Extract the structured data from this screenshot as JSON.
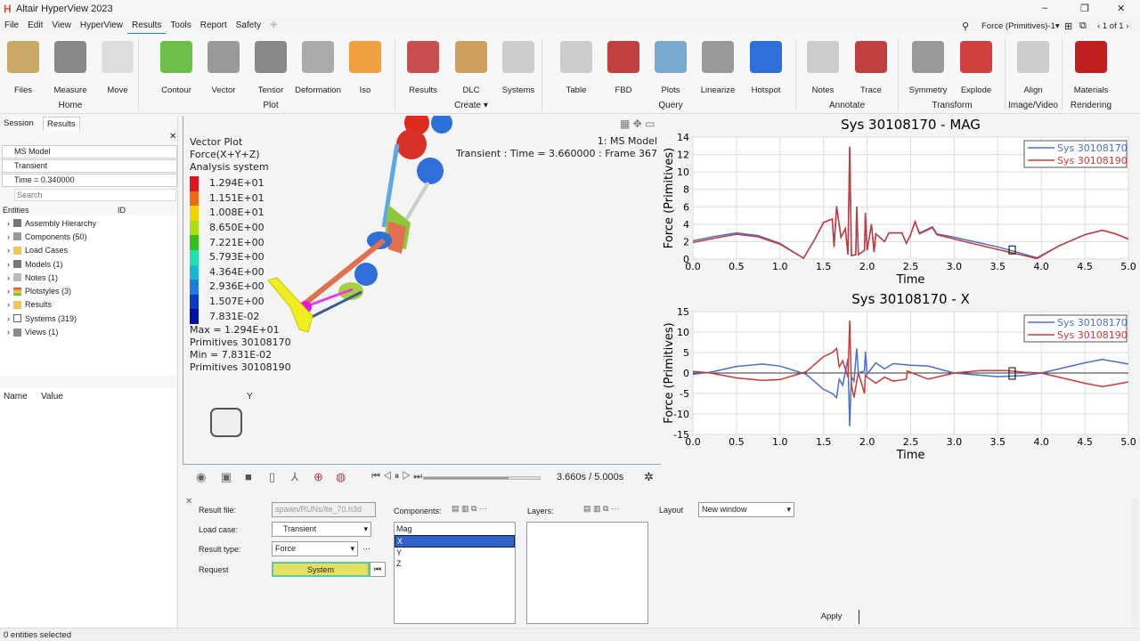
{
  "app": {
    "title": "Altair HyperView 2023",
    "logo": "H"
  },
  "window": {
    "minimize": "–",
    "maximize": "❐",
    "close": "✕"
  },
  "menu": [
    "File",
    "Edit",
    "View",
    "HyperView",
    "Results",
    "Tools",
    "Report",
    "Safety"
  ],
  "menu_active": "Results",
  "top_right": {
    "plot_name": "Force (Primitives)-1",
    "page": "1 of 1"
  },
  "ribbon": {
    "buttons": [
      {
        "label": "Files",
        "color": "#c9a865"
      },
      {
        "label": "Measure",
        "color": "#888"
      },
      {
        "label": "Move",
        "color": "#ddd"
      },
      {
        "label": "Contour",
        "color": "#6cc04a"
      },
      {
        "label": "Vector",
        "color": "#999"
      },
      {
        "label": "Tensor",
        "color": "#888"
      },
      {
        "label": "Deformation",
        "color": "#aaa"
      },
      {
        "label": "Iso",
        "color": "#f0a040"
      },
      {
        "label": "Results",
        "color": "#c85050"
      },
      {
        "label": "DLC",
        "color": "#d0a060"
      },
      {
        "label": "Systems",
        "color": "#ccc"
      },
      {
        "label": "Table",
        "color": "#ccc"
      },
      {
        "label": "FBD",
        "color": "#c04040"
      },
      {
        "label": "Plots",
        "color": "#7ac"
      },
      {
        "label": "Linearize",
        "color": "#999"
      },
      {
        "label": "Hotspot",
        "color": "#2e6fd9"
      },
      {
        "label": "Notes",
        "color": "#ccc"
      },
      {
        "label": "Trace",
        "color": "#c04040"
      },
      {
        "label": "Symmetry",
        "color": "#999"
      },
      {
        "label": "Explode",
        "color": "#d04040"
      },
      {
        "label": "Align",
        "color": "#ccc"
      },
      {
        "label": "Materials",
        "color": "#c02020"
      }
    ],
    "groups": [
      "Home",
      "Plot",
      "Create ▾",
      "Query",
      "Annotate",
      "Transform",
      "Image/Video",
      "Rendering"
    ]
  },
  "left_panel": {
    "tabs": [
      "Session",
      "Results"
    ],
    "selectors": [
      "MS Model",
      "Transient",
      "Time = 0.340000"
    ],
    "search_placeholder": "Search",
    "entities_header": "Entities",
    "id_col": "ID",
    "tree": [
      "Assembly Hierarchy",
      "Components (50)",
      "Load Cases",
      "Models (1)",
      "Notes (1)",
      "Plotstyles (3)",
      "Results",
      "Systems (319)",
      "Views (1)"
    ],
    "props_headers": [
      "Name",
      "Value"
    ]
  },
  "viewport": {
    "legend_title": [
      "Vector Plot",
      "Force(X+Y+Z)",
      "Analysis system"
    ],
    "legend_values": [
      "1.294E+01",
      "1.151E+01",
      "1.008E+01",
      "8.650E+00",
      "7.221E+00",
      "5.793E+00",
      "4.364E+00",
      "2.936E+00",
      "1.507E+00",
      "7.831E-02"
    ],
    "legend_colors": [
      "#e0141e",
      "#f26a10",
      "#f5d10a",
      "#a8e010",
      "#30c020",
      "#20e0b0",
      "#18b8d0",
      "#1e7be0",
      "#0a3cc8",
      "#0010a0"
    ],
    "max_label": "Max =  1.294E+01",
    "max_entity": "Primitives 30108170",
    "min_label": "Min =  7.831E-02",
    "min_entity": "Primitives 30108190",
    "model_label": "1: MS Model",
    "time_label": "Transient : Time = 3.660000 : Frame 367",
    "axis_y": "Y"
  },
  "animation": {
    "time": "3.660s / 5.000s",
    "progress": 0.732
  },
  "bottom_panel": {
    "result_file_label": "Result file:",
    "result_file": "spawn/RUNs/lte_70.h3d",
    "load_case_label": "Load case:",
    "load_case": "Transient",
    "result_type_label": "Result type:",
    "result_type": "Force",
    "request_label": "Request",
    "request": "System",
    "components_label": "Components:",
    "components": [
      "Mag",
      "X",
      "Y",
      "Z"
    ],
    "selected_component": "X",
    "layers_label": "Layers:",
    "layout_label": "Layout",
    "layout": "New window",
    "apply": "Apply"
  },
  "status": "0 entities selected",
  "chart_data": [
    {
      "type": "line",
      "title": "Sys 30108170 - MAG",
      "xlabel": "Time",
      "ylabel": "Force (Primitives)",
      "xlim": [
        0,
        5
      ],
      "ylim": [
        0,
        14
      ],
      "xticks": [
        "0.0",
        "0.5",
        "1.0",
        "1.5",
        "2.0",
        "2.5",
        "3.0",
        "3.5",
        "4.0",
        "4.5",
        "5.0"
      ],
      "yticks": [
        "0",
        "2",
        "4",
        "6",
        "8",
        "10",
        "12",
        "14"
      ],
      "grid": true,
      "legend": "top-right",
      "series": [
        {
          "name": "Sys 30108170",
          "color": "#4a6fc8",
          "points": [
            [
              0,
              2.1
            ],
            [
              0.25,
              2.6
            ],
            [
              0.5,
              3.0
            ],
            [
              0.75,
              2.7
            ],
            [
              1.0,
              1.8
            ],
            [
              1.27,
              0.1
            ],
            [
              1.4,
              2.3
            ],
            [
              1.5,
              4.2
            ],
            [
              1.6,
              4.6
            ],
            [
              1.62,
              1.4
            ],
            [
              1.65,
              6.1
            ],
            [
              1.7,
              2.5
            ],
            [
              1.75,
              3.5
            ],
            [
              1.78,
              0.5
            ],
            [
              1.8,
              12.9
            ],
            [
              1.82,
              0.4
            ],
            [
              1.87,
              0.5
            ],
            [
              1.88,
              6.0
            ],
            [
              1.9,
              0.5
            ],
            [
              1.97,
              1.0
            ],
            [
              1.98,
              5.3
            ],
            [
              2.0,
              1.0
            ],
            [
              2.05,
              4.0
            ],
            [
              2.08,
              0.8
            ],
            [
              2.1,
              2.9
            ],
            [
              2.2,
              2.0
            ],
            [
              2.25,
              3.0
            ],
            [
              2.4,
              3.0
            ],
            [
              2.45,
              1.8
            ],
            [
              2.5,
              2.8
            ],
            [
              2.55,
              4.3
            ],
            [
              2.6,
              3.0
            ],
            [
              2.75,
              3.7
            ],
            [
              2.8,
              2.9
            ],
            [
              3.0,
              2.5
            ],
            [
              3.5,
              1.4
            ],
            [
              3.95,
              0.15
            ],
            [
              4.2,
              1.5
            ],
            [
              4.5,
              2.8
            ],
            [
              4.7,
              3.3
            ],
            [
              4.85,
              2.9
            ],
            [
              5.0,
              2.3
            ]
          ]
        },
        {
          "name": "Sys 30108190",
          "color": "#c83a3a",
          "points": [
            [
              0,
              1.9
            ],
            [
              0.25,
              2.4
            ],
            [
              0.5,
              2.85
            ],
            [
              0.75,
              2.55
            ],
            [
              1.0,
              1.7
            ],
            [
              1.27,
              0.1
            ],
            [
              1.4,
              2.3
            ],
            [
              1.5,
              4.2
            ],
            [
              1.6,
              4.6
            ],
            [
              1.62,
              1.4
            ],
            [
              1.65,
              6.0
            ],
            [
              1.7,
              2.5
            ],
            [
              1.75,
              3.5
            ],
            [
              1.78,
              0.5
            ],
            [
              1.8,
              12.9
            ],
            [
              1.82,
              0.4
            ],
            [
              1.87,
              0.5
            ],
            [
              1.88,
              6.0
            ],
            [
              1.9,
              0.5
            ],
            [
              1.97,
              1.0
            ],
            [
              1.98,
              5.3
            ],
            [
              2.0,
              1.0
            ],
            [
              2.05,
              4.0
            ],
            [
              2.08,
              0.8
            ],
            [
              2.1,
              2.9
            ],
            [
              2.2,
              2.0
            ],
            [
              2.25,
              3.0
            ],
            [
              2.4,
              3.0
            ],
            [
              2.45,
              1.8
            ],
            [
              2.5,
              2.8
            ],
            [
              2.55,
              4.3
            ],
            [
              2.6,
              2.9
            ],
            [
              2.75,
              3.6
            ],
            [
              2.8,
              2.8
            ],
            [
              3.0,
              2.3
            ],
            [
              3.5,
              1.1
            ],
            [
              3.95,
              0.05
            ],
            [
              4.2,
              1.5
            ],
            [
              4.5,
              2.8
            ],
            [
              4.7,
              3.3
            ],
            [
              4.85,
              2.9
            ],
            [
              5.0,
              2.3
            ]
          ]
        }
      ]
    },
    {
      "type": "line",
      "title": "Sys 30108170 - X",
      "xlabel": "Time",
      "ylabel": "Force (Primitives)",
      "xlim": [
        0,
        5
      ],
      "ylim": [
        -15,
        15
      ],
      "xticks": [
        "0.0",
        "0.5",
        "1.0",
        "1.5",
        "2.0",
        "2.5",
        "3.0",
        "3.5",
        "4.0",
        "4.5",
        "5.0"
      ],
      "yticks": [
        "-15",
        "-10",
        "-5",
        "0",
        "5",
        "10",
        "15"
      ],
      "grid": true,
      "legend": "top-right",
      "series": [
        {
          "name": "Sys 30108170",
          "color": "#4a6fc8",
          "points": [
            [
              0,
              -0.3
            ],
            [
              0.2,
              0.2
            ],
            [
              0.5,
              1.6
            ],
            [
              0.8,
              2.2
            ],
            [
              1.0,
              1.7
            ],
            [
              1.3,
              -0.3
            ],
            [
              1.5,
              -4.0
            ],
            [
              1.6,
              -5.0
            ],
            [
              1.65,
              -6
            ],
            [
              1.68,
              -1.5
            ],
            [
              1.72,
              -3
            ],
            [
              1.78,
              3.5
            ],
            [
              1.8,
              -13
            ],
            [
              1.82,
              -1
            ],
            [
              1.85,
              -2
            ],
            [
              1.88,
              6
            ],
            [
              1.9,
              0
            ],
            [
              1.97,
              0.5
            ],
            [
              1.98,
              5.2
            ],
            [
              2.0,
              -0.3
            ],
            [
              2.1,
              2.5
            ],
            [
              2.2,
              1.0
            ],
            [
              2.3,
              2.3
            ],
            [
              2.5,
              1.9
            ],
            [
              2.7,
              1.7
            ],
            [
              3.0,
              0
            ],
            [
              3.5,
              -0.9
            ],
            [
              3.8,
              -0.6
            ],
            [
              4.0,
              0
            ],
            [
              4.5,
              2.5
            ],
            [
              4.7,
              3.3
            ],
            [
              5.0,
              2.2
            ]
          ]
        },
        {
          "name": "Sys 30108190",
          "color": "#c83a3a",
          "points": [
            [
              0,
              0.4
            ],
            [
              0.2,
              0
            ],
            [
              0.5,
              -1.2
            ],
            [
              0.8,
              -1.8
            ],
            [
              1.0,
              -1.6
            ],
            [
              1.3,
              0.3
            ],
            [
              1.5,
              4.0
            ],
            [
              1.6,
              5.0
            ],
            [
              1.65,
              6
            ],
            [
              1.68,
              1.5
            ],
            [
              1.72,
              3
            ],
            [
              1.78,
              -1
            ],
            [
              1.8,
              12.8
            ],
            [
              1.82,
              -3
            ],
            [
              1.85,
              -6
            ],
            [
              1.88,
              -2
            ],
            [
              1.9,
              0
            ],
            [
              1.97,
              -5
            ],
            [
              1.98,
              -0.5
            ],
            [
              2.0,
              -1
            ],
            [
              2.1,
              -2.5
            ],
            [
              2.2,
              -1.0
            ],
            [
              2.3,
              -2.0
            ],
            [
              2.45,
              -1.5
            ],
            [
              2.46,
              0.5
            ],
            [
              2.7,
              -1.5
            ],
            [
              3.0,
              0
            ],
            [
              3.3,
              0.6
            ],
            [
              3.6,
              0.6
            ],
            [
              3.8,
              0.2
            ],
            [
              4.0,
              0
            ],
            [
              4.5,
              -2.5
            ],
            [
              4.7,
              -3.3
            ],
            [
              5.0,
              -2.2
            ]
          ]
        }
      ]
    }
  ]
}
